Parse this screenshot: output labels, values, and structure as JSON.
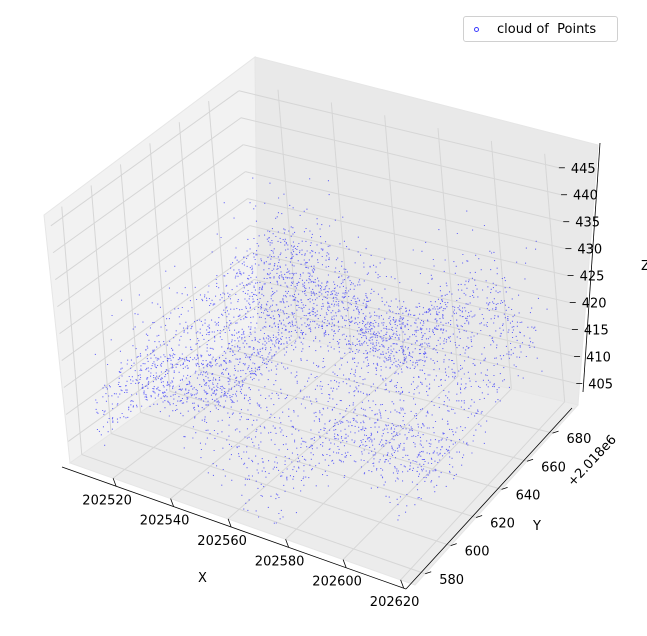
{
  "chart_data": {
    "type": "scatter",
    "projection": "3d",
    "legend": {
      "position": "top-right",
      "label": "cloud of  Points"
    },
    "color": "#0000ff",
    "xlabel": "X",
    "ylabel": "Y",
    "zlabel": "Z",
    "xlim": [
      202505,
      202625
    ],
    "ylim": [
      572,
      700
    ],
    "zlim": [
      401,
      447
    ],
    "y_offset_text": "+2.018e6",
    "x_ticks": [
      "202520",
      "202540",
      "202560",
      "202580",
      "202600",
      "202620"
    ],
    "y_ticks": [
      "580",
      "600",
      "620",
      "640",
      "660",
      "680"
    ],
    "z_ticks": [
      "405",
      "410",
      "415",
      "420",
      "425",
      "430",
      "435",
      "440",
      "445"
    ],
    "grid": true,
    "point_cloud_summary": {
      "x_range": [
        202510,
        202622
      ],
      "y_range": [
        575,
        690
      ],
      "z_range": [
        402,
        446
      ]
    }
  }
}
